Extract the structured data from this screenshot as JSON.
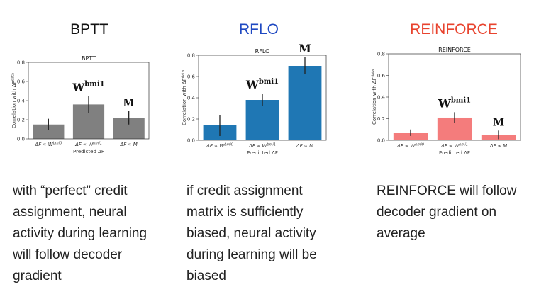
{
  "panels": [
    {
      "heading": "BPTT",
      "heading_color": "#111111",
      "caption_lines": [
        "with “perfect” credit",
        "assignment, neural",
        "activity during learning",
        "will follow decoder",
        "gradient"
      ]
    },
    {
      "heading": "RFLO",
      "heading_color": "#1f49c2",
      "caption_lines": [
        "if credit assignment",
        "matrix is sufficiently",
        "biased, neural activity",
        "during learning will be",
        "biased"
      ]
    },
    {
      "heading": "REINFORCE",
      "heading_color": "#e8432e",
      "caption_lines": [
        "REINFORCE will follow",
        "decoder gradient on",
        "average"
      ]
    }
  ],
  "chart_data": [
    {
      "type": "bar",
      "title": "BPTT",
      "categories": [
        "ΔF ∝ W^bmi0",
        "ΔF ∝ W^bmi1",
        "ΔF ∝ M"
      ],
      "values": [
        0.15,
        0.36,
        0.22
      ],
      "errors": [
        0.06,
        0.09,
        0.07
      ],
      "color": "#808080",
      "xlabel": "Predicted ΔF",
      "ylabel": "Correlation with ΔF^data",
      "ylim": [
        0,
        0.8
      ],
      "yticks": [
        "0.0",
        "0.2",
        "0.4",
        "0.6",
        "0.8"
      ],
      "annotations": [
        {
          "category": 1,
          "text": "W",
          "sup": "bmi1"
        },
        {
          "category": 2,
          "text": "M",
          "sup": ""
        }
      ]
    },
    {
      "type": "bar",
      "title": "RFLO",
      "categories": [
        "ΔF ∝ W^bmi0",
        "ΔF ∝ W^bmi1",
        "ΔF ∝ M"
      ],
      "values": [
        0.14,
        0.38,
        0.7
      ],
      "errors": [
        0.1,
        0.06,
        0.08
      ],
      "color": "#1f77b4",
      "xlabel": "Predicted ΔF",
      "ylabel": "Correlation with ΔF^data",
      "ylim": [
        0,
        0.8
      ],
      "yticks": [
        "0.0",
        "0.2",
        "0.4",
        "0.6",
        "0.8"
      ],
      "annotations": [
        {
          "category": 1,
          "text": "W",
          "sup": "bmi1"
        },
        {
          "category": 2,
          "text": "M",
          "sup": ""
        }
      ]
    },
    {
      "type": "bar",
      "title": "REINFORCE",
      "categories": [
        "ΔF ∝ W^bmi0",
        "ΔF ∝ W^bmi1",
        "ΔF ∝ M"
      ],
      "values": [
        0.07,
        0.21,
        0.05
      ],
      "errors": [
        0.03,
        0.05,
        0.04
      ],
      "color": "#f47c7c",
      "xlabel": "Predicted ΔF",
      "ylabel": "Correlation with ΔF^data",
      "ylim": [
        0,
        0.8
      ],
      "yticks": [
        "0.0",
        "0.2",
        "0.4",
        "0.6",
        "0.8"
      ],
      "annotations": [
        {
          "category": 1,
          "text": "W",
          "sup": "bmi1"
        },
        {
          "category": 2,
          "text": "M",
          "sup": ""
        }
      ]
    }
  ]
}
